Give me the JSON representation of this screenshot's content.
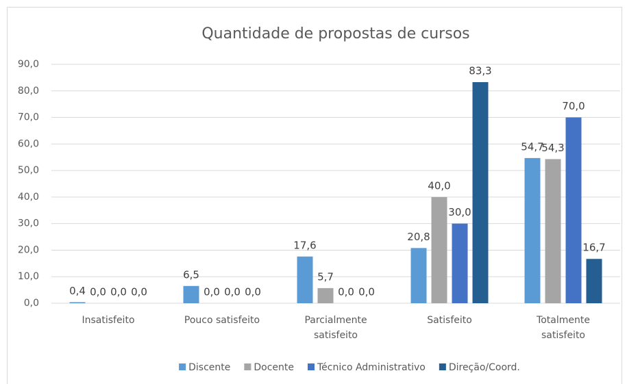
{
  "chart_data": {
    "type": "bar",
    "title": "Quantidade de propostas de cursos",
    "categories": [
      "Insatisfeito",
      "Pouco satisfeito",
      "Parcialmente satisfeito",
      "Satisfeito",
      "Totalmente satisfeito"
    ],
    "series": [
      {
        "name": "Discente",
        "color": "#5b9bd5",
        "values": [
          0.4,
          6.5,
          17.6,
          20.8,
          54.7
        ],
        "value_labels": [
          "0,4",
          "6,5",
          "17,6",
          "20,8",
          "54,7"
        ]
      },
      {
        "name": "Docente",
        "color": "#a5a5a5",
        "values": [
          0,
          0,
          5.7,
          40,
          54.3
        ],
        "value_labels": [
          "0,0",
          "0,0",
          "5,7",
          "40,0",
          "54,3"
        ]
      },
      {
        "name": "Técnico Administrativo",
        "color": "#4472c4",
        "values": [
          0,
          0,
          0,
          30,
          70
        ],
        "value_labels": [
          "0,0",
          "0,0",
          "0,0",
          "30,0",
          "70,0"
        ]
      },
      {
        "name": "Direção/Coord.",
        "color": "#255e91",
        "values": [
          0,
          0,
          0,
          83.3,
          16.7
        ],
        "value_labels": [
          "0,0",
          "0,0",
          "0,0",
          "83,3",
          "16,7"
        ]
      }
    ],
    "ylim": [
      0,
      90
    ],
    "yticks": [
      {
        "value": 0,
        "label": "0,0"
      },
      {
        "value": 10,
        "label": "10,0"
      },
      {
        "value": 20,
        "label": "20,0"
      },
      {
        "value": 30,
        "label": "30,0"
      },
      {
        "value": 40,
        "label": "40,0"
      },
      {
        "value": 50,
        "label": "50,0"
      },
      {
        "value": 60,
        "label": "60,0"
      },
      {
        "value": 70,
        "label": "70,0"
      },
      {
        "value": 80,
        "label": "80,0"
      },
      {
        "value": 90,
        "label": "90,0"
      }
    ],
    "grid": true,
    "legend": "bottom"
  }
}
